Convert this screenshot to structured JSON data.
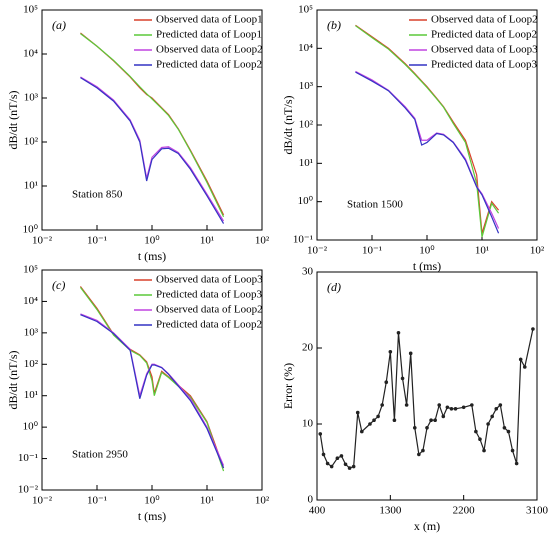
{
  "chart_data": [
    {
      "type": "line",
      "panel_label": "(a)",
      "annotation": "Station 850",
      "xlabel": "t (ms)",
      "ylabel": "dB/dt (nT/s)",
      "xscale": "log",
      "yscale": "log",
      "legend": "upper right",
      "xlim": [
        0.01,
        100
      ],
      "ylim": [
        1,
        100000
      ],
      "xticks": [
        {
          "value": 0.01,
          "label": "10⁻²"
        },
        {
          "value": 0.1,
          "label": "10⁻¹"
        },
        {
          "value": 1,
          "label": "10⁰"
        },
        {
          "value": 10,
          "label": "10¹"
        },
        {
          "value": 100,
          "label": "10²"
        }
      ],
      "yticks": [
        {
          "value": 1,
          "label": "10⁰"
        },
        {
          "value": 10,
          "label": "10¹"
        },
        {
          "value": 100,
          "label": "10²"
        },
        {
          "value": 1000,
          "label": "10³"
        },
        {
          "value": 10000,
          "label": "10⁴"
        },
        {
          "value": 100000,
          "label": "10⁵"
        }
      ],
      "x": [
        0.05,
        0.1,
        0.2,
        0.4,
        0.6,
        0.8,
        1,
        1.5,
        2,
        3,
        5,
        10,
        20
      ],
      "series": [
        {
          "name": "Observed data of Loop1",
          "color": "#d9412b",
          "values": [
            30000,
            15000,
            7000,
            3000,
            1700,
            1200,
            1000,
            600,
            420,
            200,
            65,
            13,
            2.2
          ]
        },
        {
          "name": "Predicted data of Loop1",
          "color": "#5cc83a",
          "values": [
            29000,
            15000,
            7200,
            3100,
            1800,
            1250,
            950,
            580,
            400,
            195,
            62,
            12,
            2
          ]
        },
        {
          "name": "Observed data of Loop2",
          "color": "#c043e0",
          "values": [
            3000,
            1800,
            900,
            320,
            110,
            15,
            45,
            75,
            78,
            58,
            26,
            6.5,
            1.6
          ]
        },
        {
          "name": "Predicted data of Loop2",
          "color": "#3434c4",
          "values": [
            2900,
            1700,
            850,
            300,
            100,
            13,
            40,
            70,
            72,
            55,
            24,
            6,
            1.4
          ]
        }
      ]
    },
    {
      "type": "line",
      "panel_label": "(b)",
      "annotation": "Station 1500",
      "xlabel": "t (ms)",
      "ylabel": "dB/dt (nT/s)",
      "xscale": "log",
      "yscale": "log",
      "legend": "upper right",
      "xlim": [
        0.01,
        100
      ],
      "ylim": [
        0.1,
        100000
      ],
      "xticks": [
        {
          "value": 0.01,
          "label": "10⁻²"
        },
        {
          "value": 0.1,
          "label": "10⁻¹"
        },
        {
          "value": 1,
          "label": "10⁰"
        },
        {
          "value": 10,
          "label": "10¹"
        },
        {
          "value": 100,
          "label": "10²"
        }
      ],
      "yticks": [
        {
          "value": 0.1,
          "label": "10⁻¹"
        },
        {
          "value": 1,
          "label": "10⁰"
        },
        {
          "value": 10,
          "label": "10¹"
        },
        {
          "value": 100,
          "label": "10²"
        },
        {
          "value": 1000,
          "label": "10³"
        },
        {
          "value": 10000,
          "label": "10⁴"
        },
        {
          "value": 100000,
          "label": "10⁵"
        }
      ],
      "x": [
        0.05,
        0.1,
        0.2,
        0.4,
        0.6,
        0.8,
        1,
        1.5,
        2,
        3,
        5,
        8,
        10,
        15,
        20
      ],
      "series": [
        {
          "name": "Observed data of Loop2",
          "color": "#d9412b",
          "values": [
            40000,
            20000,
            10000,
            4000,
            2200,
            1400,
            1000,
            500,
            300,
            120,
            40,
            5,
            0.15,
            1,
            0.6
          ]
        },
        {
          "name": "Predicted data of Loop2",
          "color": "#5cc83a",
          "values": [
            39000,
            19000,
            9500,
            3800,
            2100,
            1350,
            950,
            480,
            290,
            110,
            35,
            3,
            0.12,
            0.9,
            0.5
          ]
        },
        {
          "name": "Observed data of Loop3",
          "color": "#c043e0",
          "values": [
            2500,
            1500,
            800,
            300,
            150,
            40,
            40,
            62,
            57,
            36,
            13,
            2.5,
            1.6,
            0.5,
            0.2
          ]
        },
        {
          "name": "Predicted data of Loop3",
          "color": "#3434c4",
          "values": [
            2400,
            1400,
            780,
            280,
            140,
            30,
            35,
            60,
            55,
            35,
            12,
            2.4,
            1.5,
            0.4,
            0.15
          ]
        }
      ]
    },
    {
      "type": "line",
      "panel_label": "(c)",
      "annotation": "Station 2950",
      "xlabel": "t (ms)",
      "ylabel": "dB/dt (nT/s)",
      "xscale": "log",
      "yscale": "log",
      "legend": "upper right",
      "xlim": [
        0.01,
        100
      ],
      "ylim": [
        0.01,
        100000
      ],
      "xticks": [
        {
          "value": 0.01,
          "label": "10⁻²"
        },
        {
          "value": 0.1,
          "label": "10⁻¹"
        },
        {
          "value": 1,
          "label": "10⁰"
        },
        {
          "value": 10,
          "label": "10¹"
        },
        {
          "value": 100,
          "label": "10²"
        }
      ],
      "yticks": [
        {
          "value": 0.01,
          "label": "10⁻²"
        },
        {
          "value": 0.1,
          "label": "10⁻¹"
        },
        {
          "value": 1,
          "label": "10⁰"
        },
        {
          "value": 10,
          "label": "10¹"
        },
        {
          "value": 100,
          "label": "10²"
        },
        {
          "value": 1000,
          "label": "10³"
        },
        {
          "value": 10000,
          "label": "10⁴"
        },
        {
          "value": 100000,
          "label": "10⁵"
        }
      ],
      "x": [
        0.05,
        0.1,
        0.2,
        0.4,
        0.6,
        0.8,
        1,
        1.1,
        1.5,
        2,
        5,
        10,
        20
      ],
      "series": [
        {
          "name": "Observed data of Loop3",
          "color": "#d9412b",
          "values": [
            30000,
            6000,
            900,
            300,
            200,
            120,
            40,
            12,
            60,
            40,
            10,
            1.5,
            0.05
          ]
        },
        {
          "name": "Predicted data of Loop3",
          "color": "#5cc83a",
          "values": [
            28000,
            5500,
            850,
            280,
            190,
            110,
            30,
            10,
            55,
            38,
            9,
            1.4,
            0.04
          ]
        },
        {
          "name": "Observed data of Loop2",
          "color": "#c043e0",
          "values": [
            4000,
            2500,
            1000,
            300,
            10,
            50,
            100,
            100,
            80,
            50,
            8,
            1,
            0.06
          ]
        },
        {
          "name": "Predicted data of Loop2",
          "color": "#3434c4",
          "values": [
            3800,
            2300,
            950,
            280,
            8,
            45,
            95,
            95,
            78,
            48,
            7,
            0.9,
            0.05
          ]
        }
      ]
    },
    {
      "type": "line",
      "panel_label": "(d)",
      "xlabel": "x (m)",
      "ylabel": "Error (%)",
      "marker": true,
      "xlim": [
        400,
        3100
      ],
      "ylim": [
        0,
        30
      ],
      "xticks": [
        400,
        1300,
        2200,
        3100
      ],
      "yticks": [
        0,
        10,
        20,
        30
      ],
      "x": [
        440,
        480,
        530,
        580,
        650,
        700,
        750,
        800,
        850,
        900,
        950,
        1050,
        1100,
        1150,
        1200,
        1250,
        1300,
        1350,
        1400,
        1450,
        1500,
        1550,
        1600,
        1650,
        1700,
        1750,
        1800,
        1850,
        1900,
        1950,
        2000,
        2050,
        2100,
        2200,
        2300,
        2350,
        2400,
        2450,
        2500,
        2550,
        2600,
        2650,
        2700,
        2750,
        2800,
        2850,
        2900,
        2950,
        3050
      ],
      "series": [
        {
          "color": "#222222",
          "values": [
            8.7,
            6,
            4.8,
            4.4,
            5.5,
            5.8,
            4.7,
            4.2,
            4.4,
            11.5,
            9,
            10,
            10.5,
            11,
            12.5,
            15.5,
            19.5,
            10.5,
            22,
            16,
            12.5,
            19.3,
            9.5,
            6,
            6.5,
            9.5,
            10.5,
            10.5,
            12.5,
            11,
            12.2,
            12,
            12,
            12.2,
            12.5,
            9,
            8,
            6.5,
            10,
            11,
            12,
            12.5,
            9.5,
            9,
            6.5,
            4.8,
            18.5,
            17.5,
            22.5
          ]
        }
      ]
    }
  ]
}
